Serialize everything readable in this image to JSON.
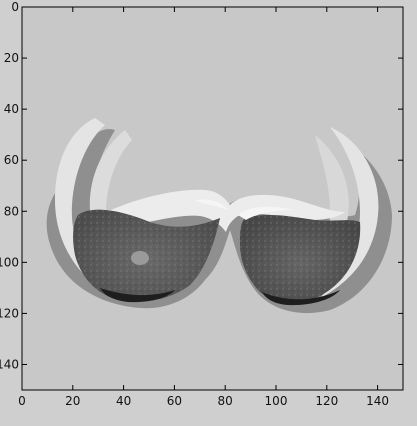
{
  "colors": {
    "window_bg": "#cfcfcf",
    "image_bg": "#c8c8c8",
    "axis": "#000000"
  },
  "image_viewer": {
    "x_ticks": [
      "0",
      "20",
      "40",
      "60",
      "80",
      "100",
      "120",
      "140"
    ],
    "y_ticks": [
      "0",
      "20",
      "40",
      "60",
      "80",
      "100",
      "120",
      "140"
    ],
    "x_tick_values": [
      0,
      20,
      40,
      60,
      80,
      100,
      120,
      140
    ],
    "y_tick_values": [
      0,
      20,
      40,
      60,
      80,
      100,
      120,
      140
    ],
    "xlim": [
      0,
      150
    ],
    "ylim": [
      150,
      0
    ]
  }
}
